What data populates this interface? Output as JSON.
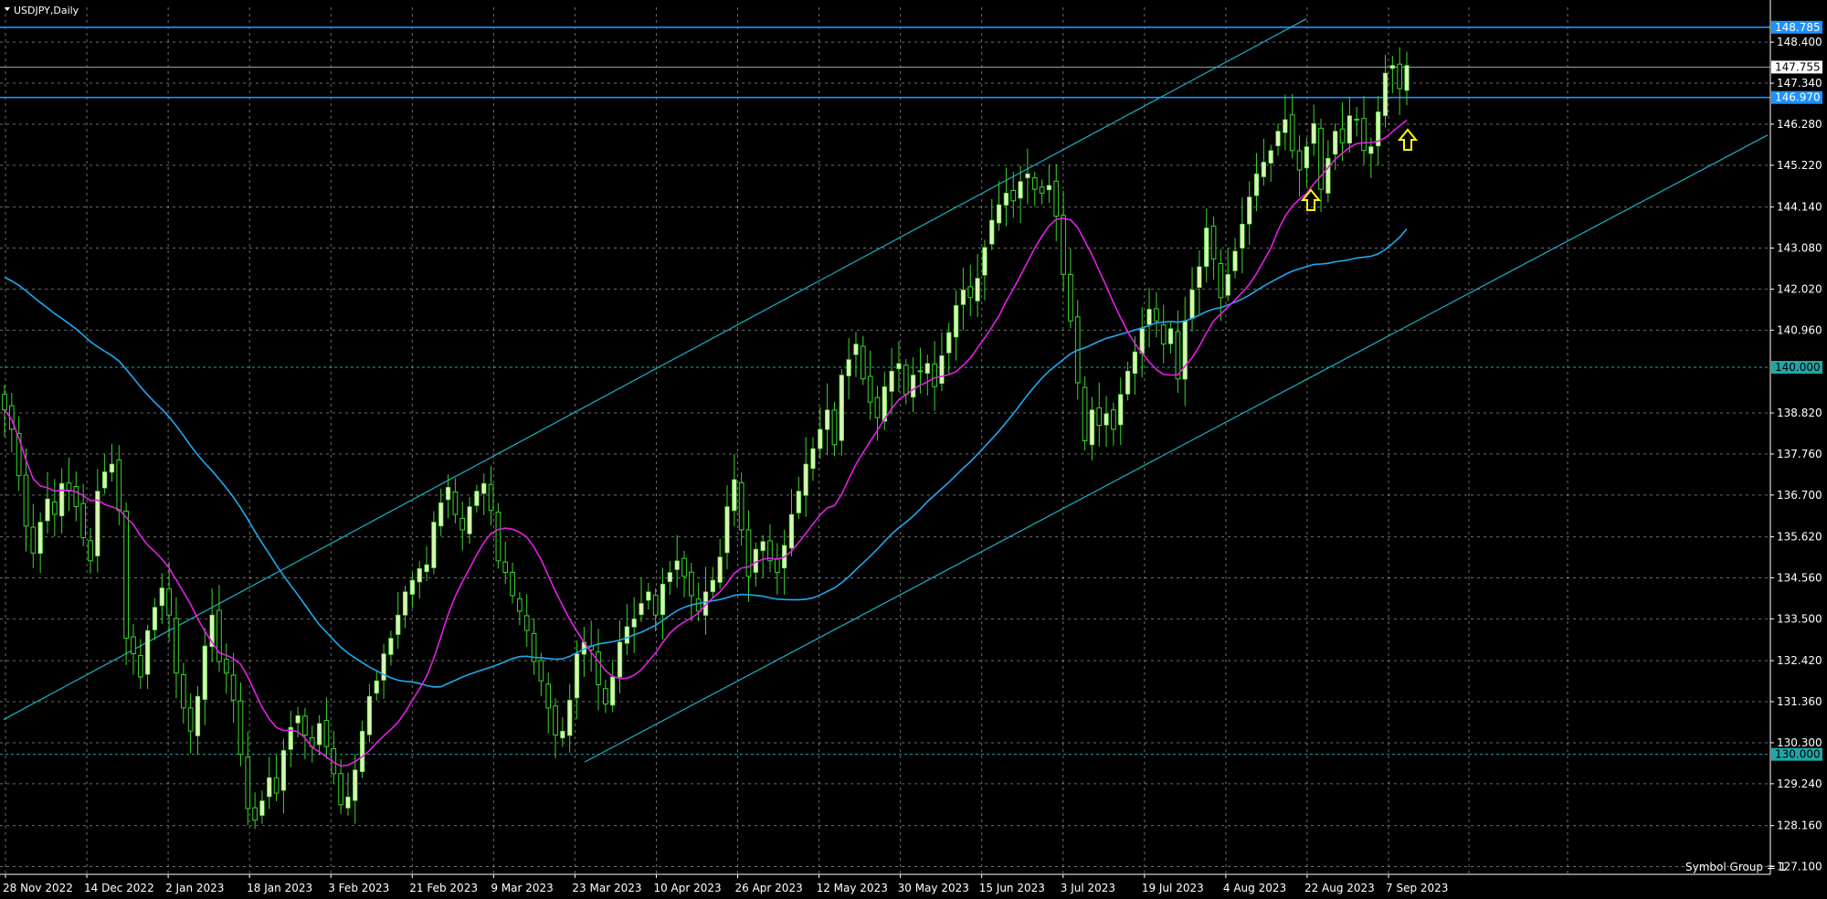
{
  "window": {
    "title": "USDJPY,Daily"
  },
  "footer": {
    "text": "Symbol Group = 1"
  },
  "colors": {
    "background": "#000000",
    "bull_candle": "#d6f5b0",
    "bear_candle": "#000000",
    "wick": "#39d62c",
    "grid": "#c8c8c8",
    "ma_fast": "#e61ee6",
    "ma_slow": "#1eaaf0",
    "channel": "#18b4c8",
    "hline_blue": "#1e90ff",
    "hline_teal": "#1fa6a6",
    "current_price_line": "#a0a0a0",
    "arrow": "#ffff00"
  },
  "chart_data": {
    "type": "candlestick",
    "symbol": "USDJPY",
    "timeframe": "Daily",
    "y_ticks": [
      "148.400",
      "147.340",
      "146.280",
      "145.220",
      "144.140",
      "143.080",
      "142.020",
      "140.960",
      "138.820",
      "137.760",
      "136.700",
      "135.620",
      "134.560",
      "133.500",
      "132.420",
      "131.360",
      "130.300",
      "129.240",
      "128.160",
      "127.100"
    ],
    "x_labels": [
      "28 Nov 2022",
      "14 Dec 2022",
      "2 Jan 2023",
      "18 Jan 2023",
      "3 Feb 2023",
      "21 Feb 2023",
      "9 Mar 2023",
      "23 Mar 2023",
      "10 Apr 2023",
      "26 Apr 2023",
      "12 May 2023",
      "30 May 2023",
      "15 Jun 2023",
      "3 Jul 2023",
      "19 Jul 2023",
      "4 Aug 2023",
      "22 Aug 2023",
      "7 Sep 2023"
    ],
    "ylim": [
      126.9,
      149.3
    ],
    "price_levels": [
      {
        "label": "148.785",
        "value": 148.785,
        "style": "blue"
      },
      {
        "label": "147.755",
        "value": 147.755,
        "style": "current"
      },
      {
        "label": "146.970",
        "value": 146.97,
        "style": "blue"
      },
      {
        "label": "140.000",
        "value": 140.0,
        "style": "teal"
      },
      {
        "label": "130.000",
        "value": 130.0,
        "style": "teal"
      }
    ],
    "closes": [
      138.9,
      138.4,
      137.2,
      135.9,
      135.2,
      136.0,
      136.6,
      136.2,
      137.0,
      136.8,
      136.4,
      135.6,
      135.0,
      136.8,
      137.3,
      137.5,
      136.3,
      133.0,
      132.6,
      132.0,
      133.2,
      133.8,
      134.3,
      133.6,
      132.1,
      131.2,
      130.6,
      131.5,
      132.8,
      133.6,
      132.4,
      132.1,
      131.4,
      130.0,
      128.6,
      128.3,
      128.8,
      129.4,
      129.0,
      130.1,
      130.7,
      131.0,
      130.5,
      130.2,
      130.8,
      130.2,
      129.5,
      128.7,
      128.9,
      129.6,
      130.6,
      131.5,
      131.9,
      132.6,
      133.0,
      133.6,
      134.2,
      134.5,
      134.8,
      134.9,
      136.0,
      136.5,
      136.9,
      136.2,
      135.8,
      136.4,
      136.8,
      137.0,
      136.3,
      135.0,
      134.7,
      134.1,
      133.7,
      133.2,
      132.4,
      131.9,
      131.2,
      130.5,
      130.6,
      131.4,
      132.6,
      132.9,
      132.7,
      131.8,
      131.3,
      132.0,
      132.9,
      133.3,
      133.5,
      133.9,
      134.2,
      133.6,
      134.4,
      134.7,
      135.0,
      134.6,
      134.1,
      133.7,
      134.2,
      134.5,
      135.1,
      136.4,
      137.1,
      135.8,
      134.6,
      135.3,
      135.5,
      135.0,
      134.7,
      135.4,
      136.2,
      136.8,
      137.5,
      137.9,
      138.4,
      138.9,
      138.0,
      139.8,
      140.2,
      140.6,
      139.7,
      139.1,
      138.7,
      139.5,
      139.9,
      140.1,
      139.3,
      139.8,
      139.9,
      140.1,
      139.5,
      140.3,
      140.9,
      141.6,
      142.0,
      141.8,
      142.3,
      143.1,
      143.8,
      144.2,
      144.5,
      144.3,
      144.8,
      145.0,
      144.6,
      144.5,
      144.7,
      143.9,
      142.4,
      141.2,
      139.6,
      138.1,
      138.9,
      138.5,
      138.8,
      138.4,
      139.3,
      139.9,
      140.4,
      141.0,
      141.5,
      141.2,
      140.6,
      141.0,
      139.7,
      141.2,
      142.0,
      142.6,
      143.6,
      142.8,
      141.8,
      142.4,
      143.0,
      143.7,
      144.4,
      145.0,
      145.3,
      145.6,
      146.1,
      146.4,
      145.6,
      145.1,
      145.7,
      146.3,
      144.6,
      145.4,
      146.1,
      145.8,
      146.5,
      146.4,
      145.6,
      145.7,
      146.6,
      147.6,
      147.8,
      147.2,
      147.8
    ]
  }
}
